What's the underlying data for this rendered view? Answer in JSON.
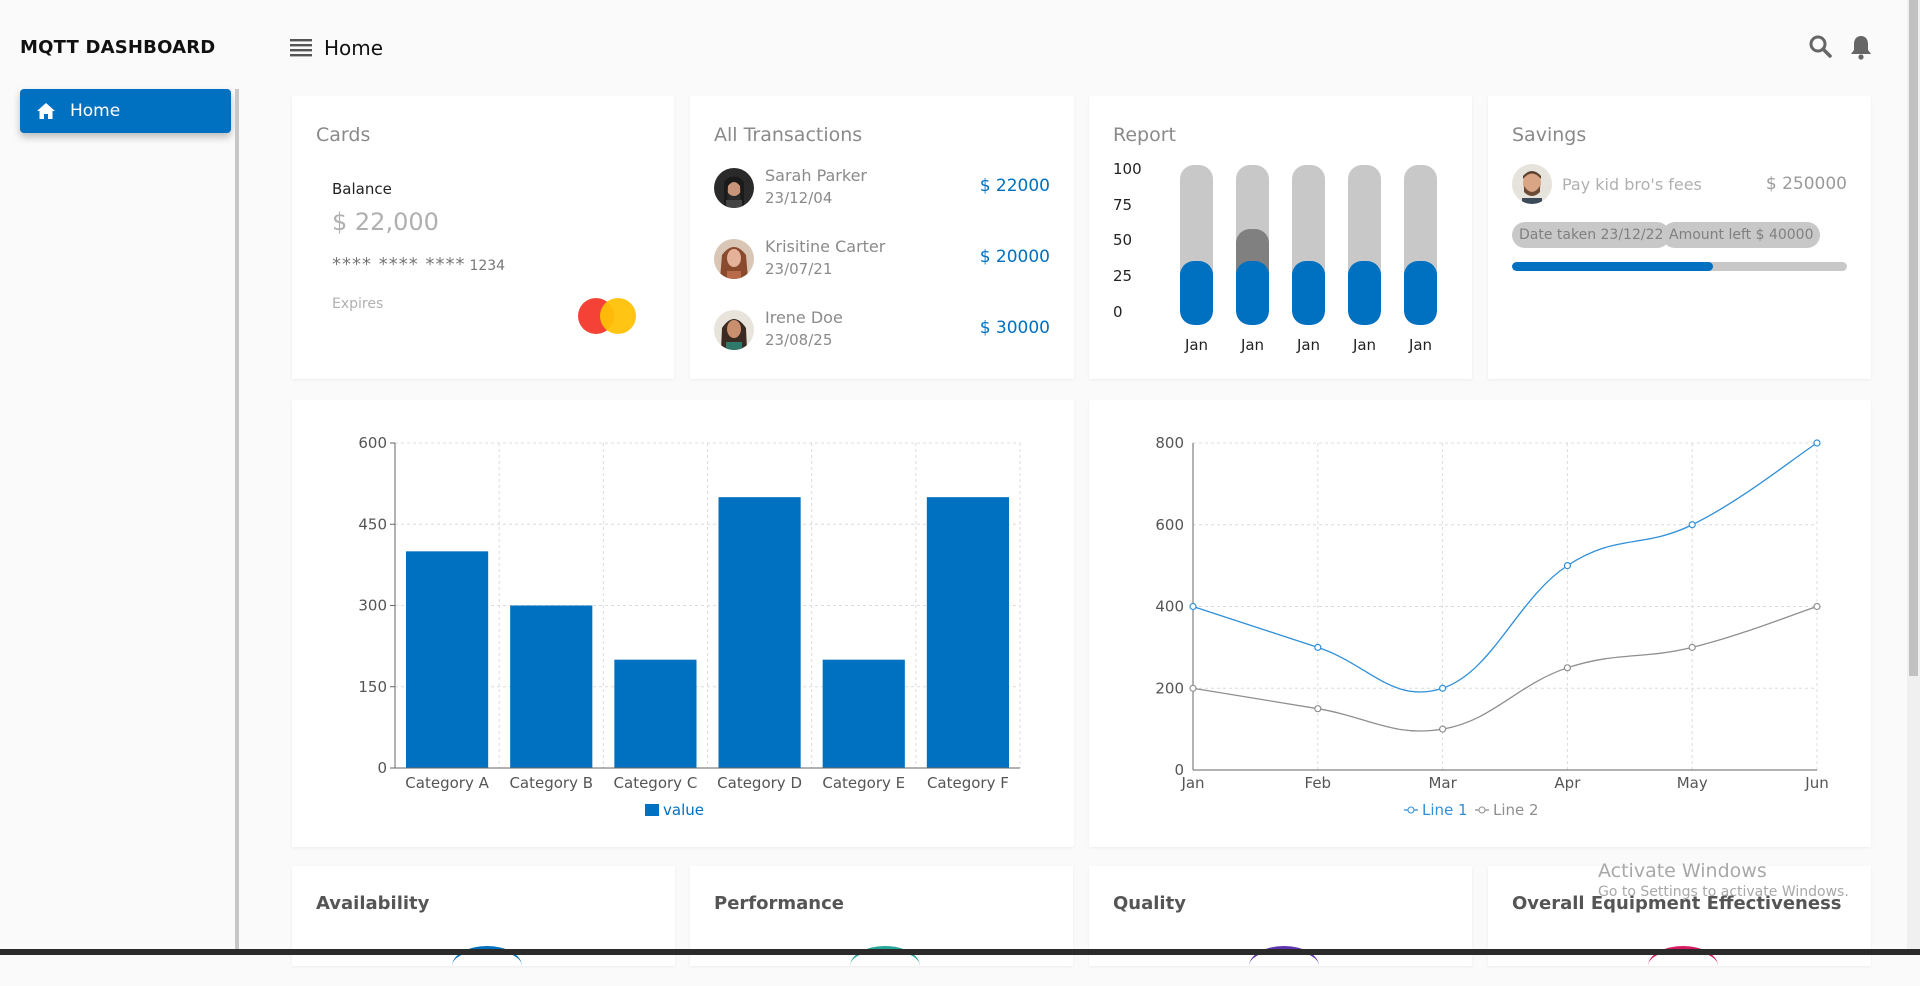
{
  "app": {
    "title": "MQTT DASHBOARD"
  },
  "sidebar": {
    "items": [
      {
        "label": "Home",
        "icon": "home-icon",
        "active": true
      }
    ]
  },
  "header": {
    "title": "Home",
    "icons": [
      "search-icon",
      "bell-icon"
    ]
  },
  "cards": {
    "title": "Cards",
    "balance_label": "Balance",
    "balance": "$ 22,000",
    "card_number_masked": "**** **** ****",
    "card_number_last": "1234",
    "expires_label": "Expires",
    "brand_icon": "mastercard-icon"
  },
  "transactions": {
    "title": "All Transactions",
    "items": [
      {
        "name": "Sarah Parker",
        "date": "23/12/04",
        "amount": "$ 22000"
      },
      {
        "name": "Krisitine Carter",
        "date": "23/07/21",
        "amount": "$ 20000"
      },
      {
        "name": "Irene Doe",
        "date": "23/08/25",
        "amount": "$ 30000"
      }
    ]
  },
  "report": {
    "title": "Report",
    "axis": [
      "100",
      "75",
      "50",
      "25",
      "0"
    ],
    "bars": [
      {
        "label": "Jan",
        "value": 40,
        "highlight": 0
      },
      {
        "label": "Jan",
        "value": 40,
        "highlight": 20
      },
      {
        "label": "Jan",
        "value": 40,
        "highlight": 0
      },
      {
        "label": "Jan",
        "value": 40,
        "highlight": 0
      },
      {
        "label": "Jan",
        "value": 40,
        "highlight": 0
      }
    ],
    "colors": {
      "fill": "#0070c0",
      "track": "#c8c8c8",
      "highlight": "#808080"
    }
  },
  "savings": {
    "title": "Savings",
    "description": "Pay kid bro's fees",
    "amount": "$ 250000",
    "date_chip": "Date taken 23/12/22",
    "left_chip": "Amount left $ 40000",
    "progress": 0.6
  },
  "chart_data": [
    {
      "type": "bar",
      "categories": [
        "Category A",
        "Category B",
        "Category C",
        "Category D",
        "Category E",
        "Category F"
      ],
      "series": [
        {
          "name": "value",
          "values": [
            400,
            300,
            200,
            500,
            200,
            500
          ],
          "color": "#0070c0"
        }
      ],
      "yticks": [
        "0",
        "150",
        "300",
        "450",
        "600"
      ],
      "ylim": [
        0,
        600
      ],
      "grid": true,
      "legend": "bottom"
    },
    {
      "type": "line",
      "categories": [
        "Jan",
        "Feb",
        "Mar",
        "Apr",
        "May",
        "Jun"
      ],
      "series": [
        {
          "name": "Line 1",
          "values": [
            400,
            300,
            200,
            500,
            600,
            800
          ],
          "color": "#2f8fd8"
        },
        {
          "name": "Line 2",
          "values": [
            200,
            150,
            100,
            250,
            300,
            400
          ],
          "color": "#8f8f8f"
        }
      ],
      "yticks": [
        "0",
        "200",
        "400",
        "600",
        "800"
      ],
      "ylim": [
        0,
        800
      ],
      "grid": true,
      "legend": "bottom"
    }
  ],
  "kpis": [
    {
      "title": "Availability",
      "color": "#0070c0"
    },
    {
      "title": "Performance",
      "color": "#26a69a"
    },
    {
      "title": "Quality",
      "color": "#5e35b1"
    },
    {
      "title": "Overall Equipment Effectiveness",
      "color": "#d81b60"
    }
  ],
  "watermark": {
    "line1": "Activate Windows",
    "line2": "Go to Settings to activate Windows."
  }
}
